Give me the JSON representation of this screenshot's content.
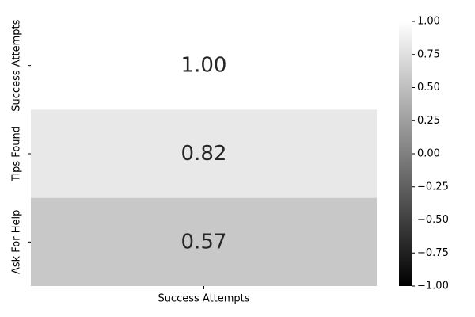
{
  "chart_data": {
    "type": "heatmap",
    "x_categories": [
      "Success Attempts"
    ],
    "y_categories": [
      "Success Attempts",
      "Tips Found",
      "Ask For Help"
    ],
    "values": [
      [
        1.0
      ],
      [
        0.82
      ],
      [
        0.57
      ]
    ],
    "value_labels": [
      [
        "1.00"
      ],
      [
        "0.82"
      ],
      [
        "0.57"
      ]
    ],
    "colorbar": {
      "min": -1.0,
      "max": 1.0,
      "ticks": [
        1.0,
        0.75,
        0.5,
        0.25,
        0.0,
        -0.25,
        -0.5,
        -0.75,
        -1.0
      ],
      "tick_labels": [
        "1.00",
        "0.75",
        "0.50",
        "0.25",
        "0.00",
        "−0.25",
        "−0.50",
        "−0.75",
        "−1.00"
      ],
      "colormap": "gray"
    },
    "colors": {
      "low": "#000000",
      "high": "#ffffff",
      "text": "#262626"
    },
    "title": "",
    "xlabel": "",
    "ylabel": ""
  }
}
